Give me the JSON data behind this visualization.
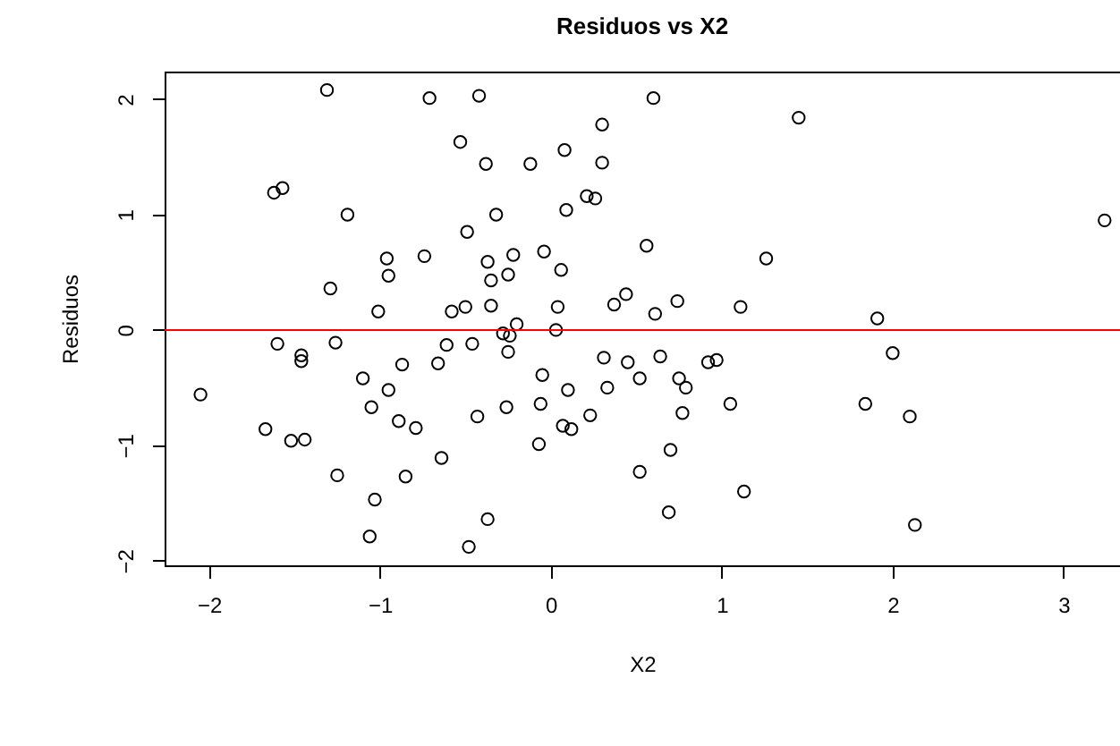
{
  "chart_data": {
    "type": "scatter",
    "title": "Residuos vs X2",
    "xlabel": "X2",
    "ylabel": "Residuos",
    "series": [
      {
        "color": "#000000",
        "x": [
          -1.31,
          -0.71,
          -1.62,
          -1.57,
          -1.19,
          -0.96,
          -0.95,
          -0.74,
          -1.29,
          -1.01,
          -1.6,
          -1.26,
          -1.46,
          -1.46,
          -2.05,
          -1.1,
          -0.87,
          -0.66,
          -0.95,
          -1.05,
          -1.67,
          -1.52,
          -1.44,
          -0.89,
          -0.79,
          -0.64,
          -1.25,
          -0.85,
          -1.03,
          -1.06,
          -0.42,
          0.6,
          0.3,
          -0.53,
          -0.38,
          -0.12,
          0.08,
          0.3,
          0.21,
          0.26,
          0.09,
          -0.32,
          -0.49,
          0.56,
          -0.37,
          -0.22,
          -0.04,
          -0.25,
          -0.35,
          0.06,
          -0.58,
          -0.5,
          -0.35,
          0.04,
          0.44,
          0.37,
          0.74,
          0.61,
          1.11,
          -0.2,
          -0.28,
          -0.24,
          0.03,
          -0.61,
          -0.46,
          -0.25,
          0.31,
          0.45,
          0.64,
          0.92,
          0.97,
          -0.05,
          0.1,
          0.33,
          0.52,
          0.75,
          0.79,
          1.05,
          -0.26,
          -0.06,
          -0.43,
          0.23,
          0.77,
          0.07,
          0.12,
          -0.07,
          0.7,
          0.52,
          1.13,
          0.69,
          -0.37,
          -0.48,
          1.45,
          3.24,
          1.26,
          1.91,
          2.0,
          1.84,
          2.1,
          2.13
        ],
        "values": [
          2.08,
          2.01,
          1.19,
          1.23,
          1.0,
          0.62,
          0.47,
          0.64,
          0.36,
          0.16,
          -0.12,
          -0.11,
          -0.22,
          -0.27,
          -0.56,
          -0.42,
          -0.3,
          -0.29,
          -0.52,
          -0.67,
          -0.86,
          -0.96,
          -0.95,
          -0.79,
          -0.85,
          -1.11,
          -1.26,
          -1.27,
          -1.47,
          -1.79,
          2.03,
          2.01,
          1.78,
          1.63,
          1.44,
          1.44,
          1.56,
          1.45,
          1.16,
          1.14,
          1.04,
          1.0,
          0.85,
          0.73,
          0.59,
          0.65,
          0.68,
          0.48,
          0.43,
          0.52,
          0.16,
          0.2,
          0.21,
          0.2,
          0.31,
          0.22,
          0.25,
          0.14,
          0.2,
          0.05,
          -0.03,
          -0.05,
          0.0,
          -0.13,
          -0.12,
          -0.19,
          -0.24,
          -0.28,
          -0.23,
          -0.28,
          -0.26,
          -0.39,
          -0.52,
          -0.5,
          -0.42,
          -0.42,
          -0.5,
          -0.64,
          -0.67,
          -0.64,
          -0.75,
          -0.74,
          -0.72,
          -0.83,
          -0.86,
          -0.99,
          -1.04,
          -1.23,
          -1.4,
          -1.58,
          -1.64,
          -1.88,
          1.84,
          0.95,
          0.62,
          0.1,
          -0.2,
          -0.64,
          -0.75,
          -1.69
        ]
      }
    ],
    "xlim": [
      -2.26,
      3.33
    ],
    "ylim": [
      -2.04,
      2.24
    ],
    "xticks": [
      -2,
      -1,
      0,
      1,
      2,
      3
    ],
    "yticks": [
      -2,
      -1,
      0,
      1,
      2
    ],
    "ref_lines": [
      {
        "axis": "y",
        "value": 0,
        "color": "#ff0000"
      }
    ],
    "marker": "circle",
    "grid": false
  }
}
